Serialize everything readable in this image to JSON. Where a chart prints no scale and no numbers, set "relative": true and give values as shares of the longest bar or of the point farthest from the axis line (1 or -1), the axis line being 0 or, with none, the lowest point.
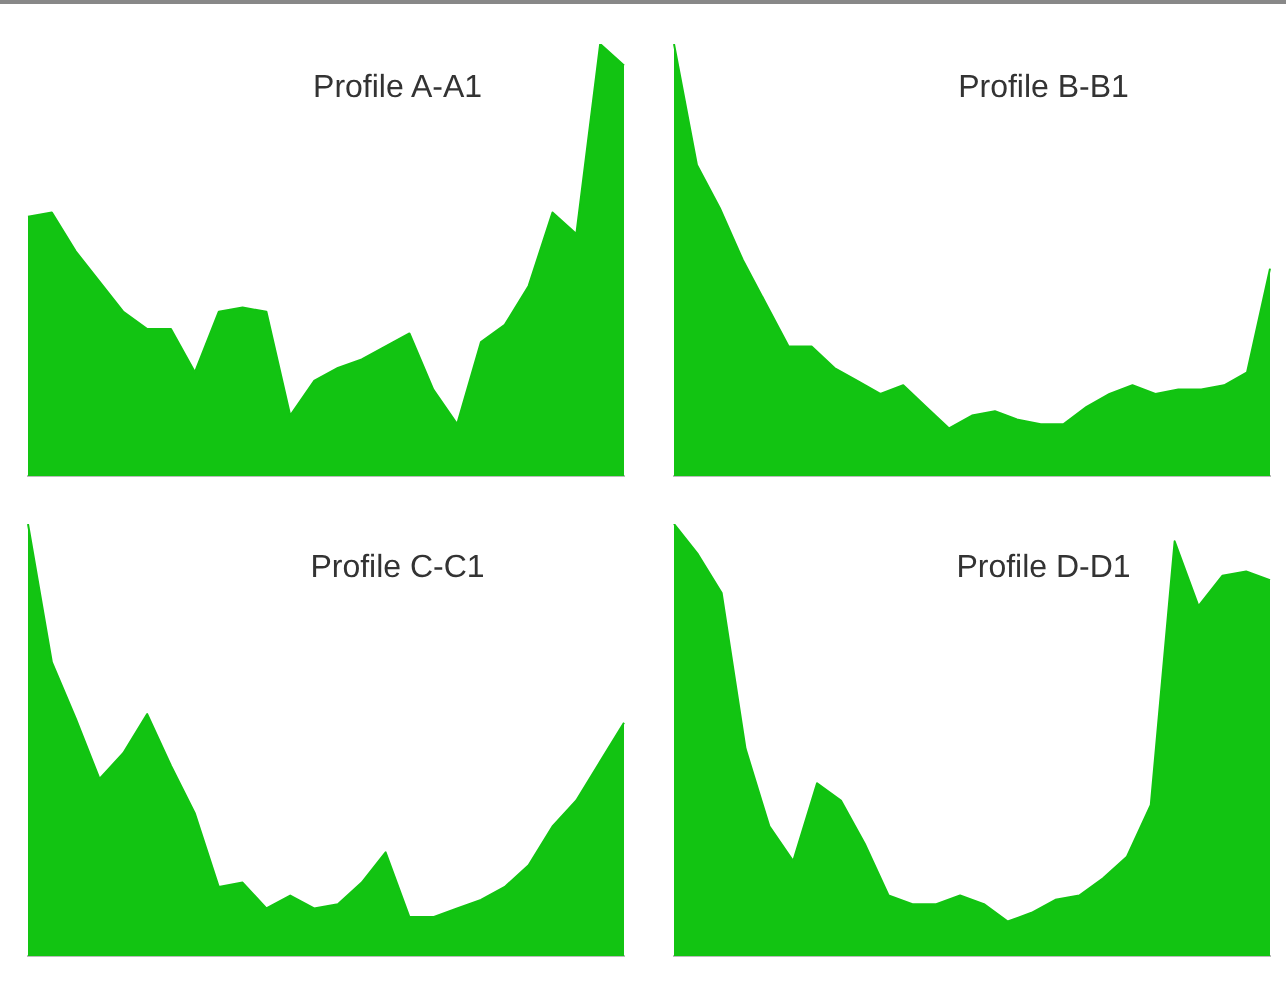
{
  "chart_data": [
    {
      "type": "area",
      "title": "Profile A-A1",
      "relative": true,
      "color": "#12c412",
      "categories": [
        null,
        null,
        null,
        null,
        null,
        null,
        null,
        null,
        null,
        null,
        null,
        null,
        null,
        null,
        null,
        null,
        null,
        null,
        null,
        null,
        null,
        null,
        null,
        null,
        null,
        null
      ],
      "values": [
        0.6,
        0.61,
        0.52,
        0.45,
        0.38,
        0.34,
        0.34,
        0.24,
        0.38,
        0.39,
        0.38,
        0.14,
        0.22,
        0.25,
        0.27,
        0.3,
        0.33,
        0.2,
        0.12,
        0.31,
        0.35,
        0.44,
        0.61,
        0.56,
        1.0,
        0.95
      ]
    },
    {
      "type": "area",
      "title": "Profile B-B1",
      "relative": true,
      "color": "#12c412",
      "categories": [
        null,
        null,
        null,
        null,
        null,
        null,
        null,
        null,
        null,
        null,
        null,
        null,
        null,
        null,
        null,
        null,
        null,
        null,
        null,
        null,
        null,
        null,
        null,
        null,
        null,
        null,
        null
      ],
      "values": [
        1.0,
        0.72,
        0.62,
        0.5,
        0.4,
        0.3,
        0.3,
        0.25,
        0.22,
        0.19,
        0.21,
        0.16,
        0.11,
        0.14,
        0.15,
        0.13,
        0.12,
        0.12,
        0.16,
        0.19,
        0.21,
        0.19,
        0.2,
        0.2,
        0.21,
        0.24,
        0.48
      ]
    },
    {
      "type": "area",
      "title": "Profile C-C1",
      "relative": true,
      "color": "#12c412",
      "categories": [
        null,
        null,
        null,
        null,
        null,
        null,
        null,
        null,
        null,
        null,
        null,
        null,
        null,
        null,
        null,
        null,
        null,
        null,
        null,
        null,
        null,
        null,
        null,
        null,
        null,
        null
      ],
      "values": [
        1.0,
        0.68,
        0.55,
        0.41,
        0.47,
        0.56,
        0.44,
        0.33,
        0.16,
        0.17,
        0.11,
        0.14,
        0.11,
        0.12,
        0.17,
        0.24,
        0.09,
        0.09,
        0.11,
        0.13,
        0.16,
        0.21,
        0.3,
        0.36,
        0.45,
        0.54
      ]
    },
    {
      "type": "area",
      "title": "Profile D-D1",
      "relative": true,
      "color": "#12c412",
      "categories": [
        null,
        null,
        null,
        null,
        null,
        null,
        null,
        null,
        null,
        null,
        null,
        null,
        null,
        null,
        null,
        null,
        null,
        null,
        null,
        null,
        null,
        null,
        null,
        null,
        null,
        null
      ],
      "values": [
        1.0,
        0.93,
        0.84,
        0.48,
        0.3,
        0.22,
        0.4,
        0.36,
        0.26,
        0.14,
        0.12,
        0.12,
        0.14,
        0.12,
        0.08,
        0.1,
        0.13,
        0.14,
        0.18,
        0.23,
        0.35,
        0.96,
        0.81,
        0.88,
        0.89,
        0.87
      ]
    }
  ]
}
